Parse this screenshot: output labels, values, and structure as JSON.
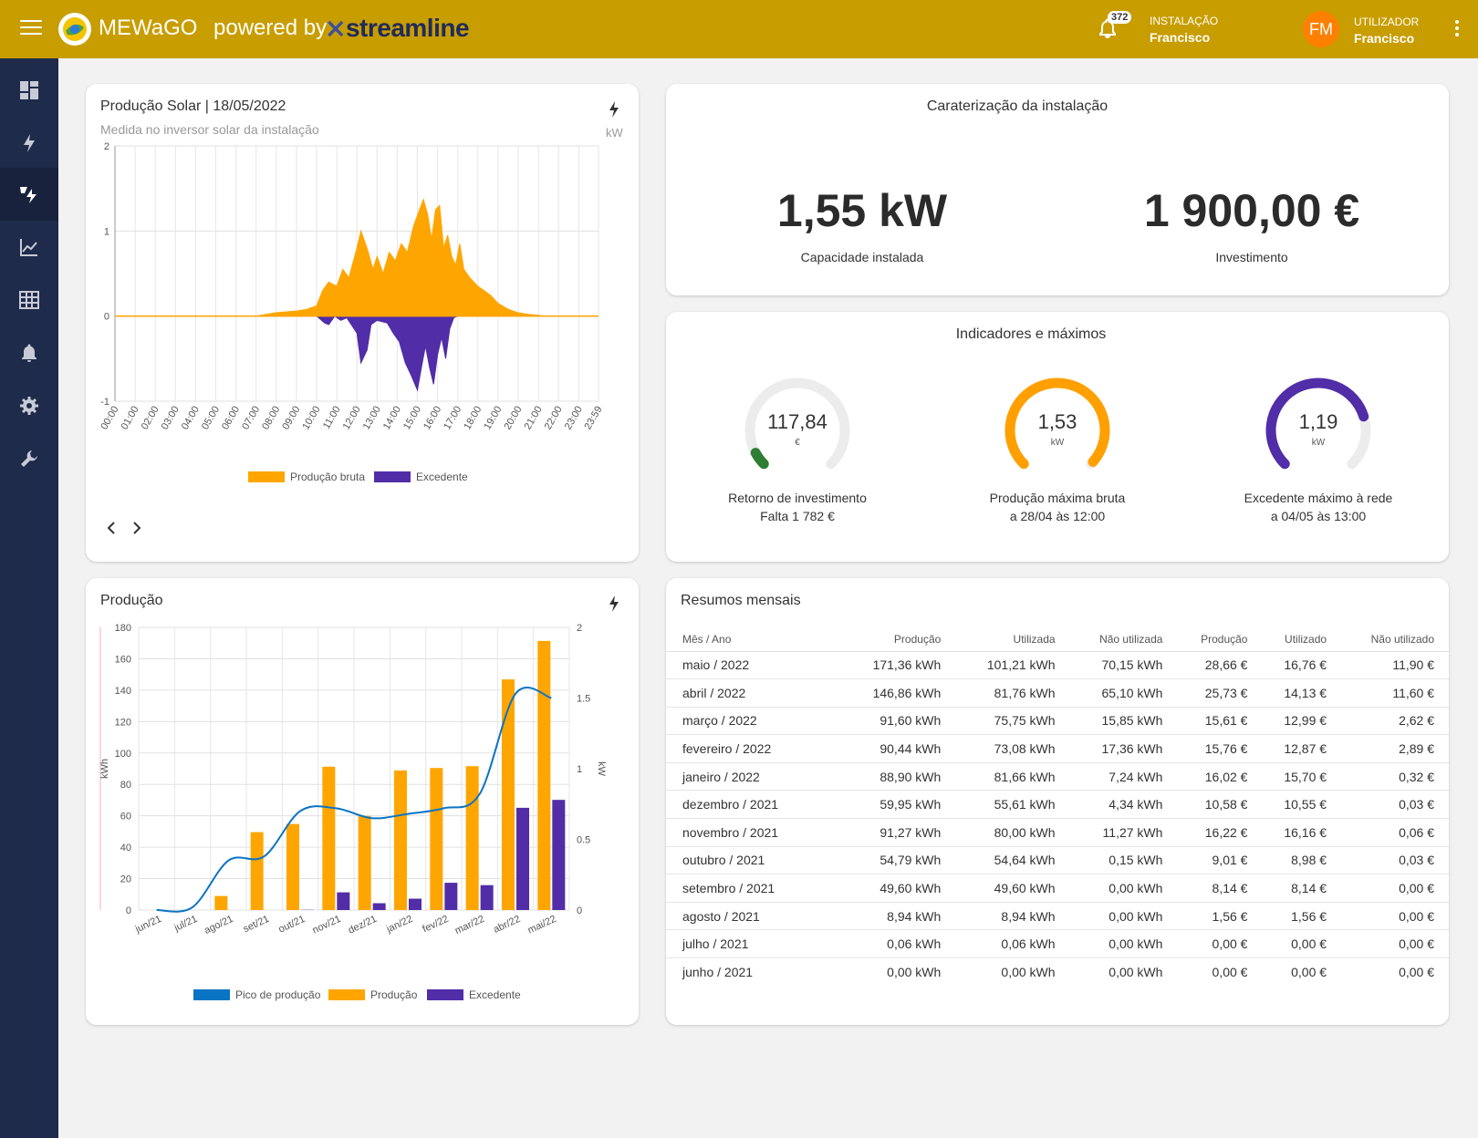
{
  "header": {
    "brand": "MEWaGO",
    "powered_by": "powered by",
    "partner": "streamline",
    "notifications_count": "372",
    "installation_label": "INSTALAÇÃO",
    "installation_name": "Francisco",
    "user_initials": "FM",
    "user_label": "UTILIZADOR",
    "user_name": "Francisco"
  },
  "sidebar": {
    "items": [
      {
        "icon": "dashboard-icon",
        "active": false
      },
      {
        "icon": "lightning-icon",
        "active": false
      },
      {
        "icon": "solar-lightning-icon",
        "active": true
      },
      {
        "icon": "chart-line-icon",
        "active": false
      },
      {
        "icon": "table-grid-icon",
        "active": false
      },
      {
        "icon": "bell-icon",
        "active": false
      },
      {
        "icon": "gear-icon",
        "active": false
      },
      {
        "icon": "wrench-icon",
        "active": false
      }
    ]
  },
  "solar_card": {
    "title": "Produção Solar | 18/05/2022",
    "subtitle": "Medida no inversor solar da instalação",
    "unit": "kW",
    "legend_gross": "Produção bruta",
    "legend_excess": "Excedente"
  },
  "installation_card": {
    "title": "Caraterização da instalação",
    "capacity_value": "1,55 kW",
    "capacity_label": "Capacidade instalada",
    "investment_value": "1 900,00 €",
    "investment_label": "Investimento"
  },
  "indicators_card": {
    "title": "Indicadores e máximos",
    "gauges": [
      {
        "value": "117,84",
        "unit": "€",
        "label": "Retorno de investimento",
        "sub": "Falta 1 782 €",
        "color": "#2e7d32",
        "fraction": 0.062
      },
      {
        "value": "1,53",
        "unit": "kW",
        "label": "Produção máxima bruta",
        "sub": "a 28/04 às 12:00",
        "color": "#ffa000",
        "fraction": 0.987
      },
      {
        "value": "1,19",
        "unit": "kW",
        "label": "Excedente máximo à rede",
        "sub": "a 04/05 às 13:00",
        "color": "#512da8",
        "fraction": 0.77
      }
    ]
  },
  "production_card": {
    "title": "Produção",
    "legend_peak": "Pico de produção",
    "legend_production": "Produção",
    "legend_excess": "Excedente"
  },
  "summary_card": {
    "title": "Resumos mensais",
    "columns": [
      "Mês / Ano",
      "Produção",
      "Utilizada",
      "Não utilizada",
      "Produção",
      "Utilizado",
      "Não utilizado"
    ],
    "rows": [
      [
        "maio / 2022",
        "171,36 kWh",
        "101,21 kWh",
        "70,15 kWh",
        "28,66 €",
        "16,76 €",
        "11,90 €"
      ],
      [
        "abril / 2022",
        "146,86 kWh",
        "81,76 kWh",
        "65,10 kWh",
        "25,73 €",
        "14,13 €",
        "11,60 €"
      ],
      [
        "março / 2022",
        "91,60 kWh",
        "75,75 kWh",
        "15,85 kWh",
        "15,61 €",
        "12,99 €",
        "2,62 €"
      ],
      [
        "fevereiro / 2022",
        "90,44 kWh",
        "73,08 kWh",
        "17,36 kWh",
        "15,76 €",
        "12,87 €",
        "2,89 €"
      ],
      [
        "janeiro / 2022",
        "88,90 kWh",
        "81,66 kWh",
        "7,24 kWh",
        "16,02 €",
        "15,70 €",
        "0,32 €"
      ],
      [
        "dezembro / 2021",
        "59,95 kWh",
        "55,61 kWh",
        "4,34 kWh",
        "10,58 €",
        "10,55 €",
        "0,03 €"
      ],
      [
        "novembro / 2021",
        "91,27 kWh",
        "80,00 kWh",
        "11,27 kWh",
        "16,22 €",
        "16,16 €",
        "0,06 €"
      ],
      [
        "outubro / 2021",
        "54,79 kWh",
        "54,64 kWh",
        "0,15 kWh",
        "9,01 €",
        "8,98 €",
        "0,03 €"
      ],
      [
        "setembro / 2021",
        "49,60 kWh",
        "49,60 kWh",
        "0,00 kWh",
        "8,14 €",
        "8,14 €",
        "0,00 €"
      ],
      [
        "agosto / 2021",
        "8,94 kWh",
        "8,94 kWh",
        "0,00 kWh",
        "1,56 €",
        "1,56 €",
        "0,00 €"
      ],
      [
        "julho / 2021",
        "0,06 kWh",
        "0,06 kWh",
        "0,00 kWh",
        "0,00 €",
        "0,00 €",
        "0,00 €"
      ],
      [
        "junho / 2021",
        "0,00 kWh",
        "0,00 kWh",
        "0,00 kWh",
        "0,00 €",
        "0,00 €",
        "0,00 €"
      ]
    ]
  },
  "chart_data": [
    {
      "type": "area",
      "title": "Produção Solar | 18/05/2022",
      "ylabel": "kW",
      "ylim": [
        -1,
        2
      ],
      "yticks": [
        "2",
        "1",
        "0",
        "-1"
      ],
      "grid": true,
      "legend": "bottom",
      "x": [
        "00:00",
        "01:00",
        "02:00",
        "03:00",
        "04:00",
        "05:00",
        "06:00",
        "07:00",
        "08:00",
        "09:00",
        "10:00",
        "11:00",
        "12:00",
        "13:00",
        "14:00",
        "15:00",
        "16:00",
        "17:00",
        "18:00",
        "19:00",
        "20:00",
        "21:00",
        "22:00",
        "23:00",
        "23:59"
      ],
      "series": [
        {
          "name": "Produção bruta",
          "color": "#ffa500",
          "points": [
            [
              0,
              0
            ],
            [
              7,
              0
            ],
            [
              7.5,
              0.02
            ],
            [
              8,
              0.04
            ],
            [
              8.5,
              0.05
            ],
            [
              9,
              0.06
            ],
            [
              9.5,
              0.08
            ],
            [
              10,
              0.12
            ],
            [
              10.3,
              0.3
            ],
            [
              10.6,
              0.4
            ],
            [
              11,
              0.35
            ],
            [
              11.3,
              0.55
            ],
            [
              11.6,
              0.45
            ],
            [
              12,
              0.8
            ],
            [
              12.2,
              1.0
            ],
            [
              12.5,
              0.8
            ],
            [
              12.8,
              0.55
            ],
            [
              13,
              0.7
            ],
            [
              13.3,
              0.5
            ],
            [
              13.6,
              0.75
            ],
            [
              13.9,
              0.65
            ],
            [
              14.2,
              0.85
            ],
            [
              14.5,
              0.75
            ],
            [
              14.8,
              1.05
            ],
            [
              15.1,
              1.25
            ],
            [
              15.3,
              1.37
            ],
            [
              15.5,
              1.2
            ],
            [
              15.7,
              0.9
            ],
            [
              15.9,
              1.25
            ],
            [
              16.1,
              1.3
            ],
            [
              16.3,
              0.8
            ],
            [
              16.5,
              0.95
            ],
            [
              16.7,
              0.7
            ],
            [
              16.9,
              0.6
            ],
            [
              17.1,
              0.85
            ],
            [
              17.3,
              0.55
            ],
            [
              17.6,
              0.45
            ],
            [
              18,
              0.35
            ],
            [
              18.3,
              0.3
            ],
            [
              18.6,
              0.25
            ],
            [
              19,
              0.15
            ],
            [
              19.5,
              0.08
            ],
            [
              20,
              0.04
            ],
            [
              20.5,
              0.02
            ],
            [
              21,
              0.01
            ],
            [
              21.2,
              0
            ],
            [
              23.98,
              0
            ]
          ]
        },
        {
          "name": "Excedente",
          "color": "#512da8",
          "points": [
            [
              0,
              0
            ],
            [
              10,
              0
            ],
            [
              10.4,
              -0.08
            ],
            [
              10.6,
              -0.1
            ],
            [
              10.9,
              0
            ],
            [
              11.2,
              -0.05
            ],
            [
              11.5,
              -0.02
            ],
            [
              12,
              -0.2
            ],
            [
              12.2,
              -0.55
            ],
            [
              12.5,
              -0.4
            ],
            [
              12.7,
              -0.1
            ],
            [
              13,
              -0.05
            ],
            [
              13.5,
              -0.08
            ],
            [
              13.8,
              -0.2
            ],
            [
              14.1,
              -0.3
            ],
            [
              14.4,
              -0.55
            ],
            [
              14.7,
              -0.7
            ],
            [
              15,
              -0.87
            ],
            [
              15.2,
              -0.6
            ],
            [
              15.4,
              -0.35
            ],
            [
              15.6,
              -0.6
            ],
            [
              15.8,
              -0.8
            ],
            [
              16,
              -0.45
            ],
            [
              16.2,
              -0.25
            ],
            [
              16.4,
              -0.5
            ],
            [
              16.6,
              -0.15
            ],
            [
              16.8,
              -0.02
            ],
            [
              17,
              0
            ],
            [
              23.98,
              0
            ]
          ]
        }
      ]
    },
    {
      "type": "bar",
      "title": "Produção",
      "ylabel": "kWh",
      "y2label": "kW",
      "ylim": [
        0,
        180
      ],
      "y2lim": [
        0,
        2
      ],
      "yticks": [
        "180",
        "160",
        "140",
        "120",
        "100",
        "80",
        "60",
        "40",
        "20",
        "0"
      ],
      "y2ticks": [
        "2",
        "1.5",
        "1",
        "0.5",
        "0"
      ],
      "grid": true,
      "legend": "bottom",
      "categories": [
        "jun/21",
        "jul/21",
        "ago/21",
        "set/21",
        "out/21",
        "nov/21",
        "dez/21",
        "jan/22",
        "fev/22",
        "mar/22",
        "abr/22",
        "mai/22"
      ],
      "series": [
        {
          "name": "Produção",
          "color": "#ffa500",
          "values": [
            0.0,
            0.06,
            8.94,
            49.6,
            54.79,
            91.27,
            59.95,
            88.9,
            90.44,
            91.6,
            146.86,
            171.36
          ]
        },
        {
          "name": "Excedente",
          "color": "#512da8",
          "values": [
            0.0,
            0.0,
            0.0,
            0.0,
            0.15,
            11.27,
            4.34,
            7.24,
            17.36,
            15.85,
            65.1,
            70.15
          ]
        },
        {
          "name": "Pico de produção",
          "color": "#0a74c4",
          "axis": "right",
          "values": [
            0.0,
            0.02,
            0.35,
            0.38,
            0.7,
            0.72,
            0.65,
            0.68,
            0.72,
            0.82,
            1.53,
            1.5
          ]
        }
      ]
    }
  ]
}
